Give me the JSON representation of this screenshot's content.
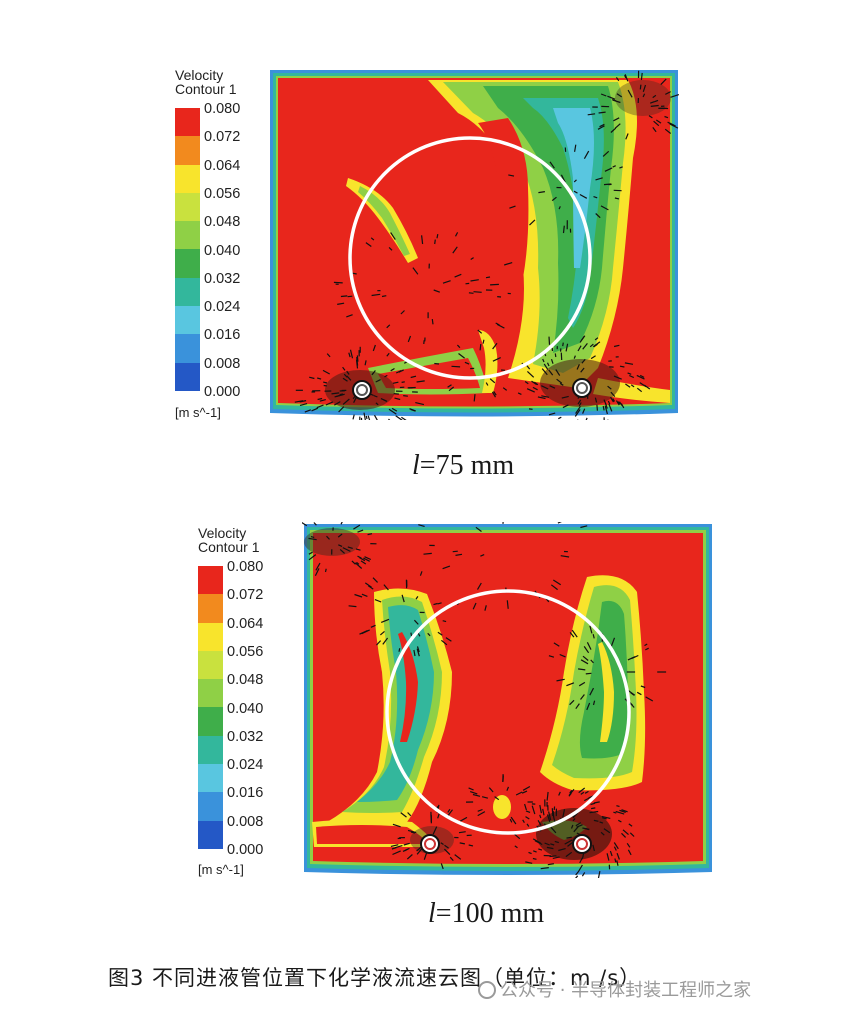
{
  "chart_data": [
    {
      "type": "heatmap",
      "legend_title": [
        "Velocity",
        "Contour 1"
      ],
      "unit": "[m s^-1]",
      "levels": [
        "0.080",
        "0.072",
        "0.064",
        "0.056",
        "0.048",
        "0.040",
        "0.032",
        "0.024",
        "0.016",
        "0.008",
        "0.000"
      ],
      "level_colors": [
        "#e8261c",
        "#f28a1e",
        "#f8e42c",
        "#c9e13e",
        "#8fd046",
        "#3fae4a",
        "#33b79c",
        "#59c6e0",
        "#3a92db",
        "#2458c6",
        "#1a2f9a"
      ],
      "subtitle_var": "l",
      "subtitle_value": "=75 mm"
    },
    {
      "type": "heatmap",
      "legend_title": [
        "Velocity",
        "Contour 1"
      ],
      "unit": "[m s^-1]",
      "levels": [
        "0.080",
        "0.072",
        "0.064",
        "0.056",
        "0.048",
        "0.040",
        "0.032",
        "0.024",
        "0.016",
        "0.008",
        "0.000"
      ],
      "level_colors": [
        "#e8261c",
        "#f28a1e",
        "#f8e42c",
        "#c9e13e",
        "#8fd046",
        "#3fae4a",
        "#33b79c",
        "#59c6e0",
        "#3a92db",
        "#2458c6",
        "#1a2f9a"
      ],
      "subtitle_var": "l",
      "subtitle_value": "=100 mm"
    }
  ],
  "caption": "图3 不同进液管位置下化学液流速云图（单位：m /s）",
  "watermark": "公众号 · 半导体封装工程师之家"
}
